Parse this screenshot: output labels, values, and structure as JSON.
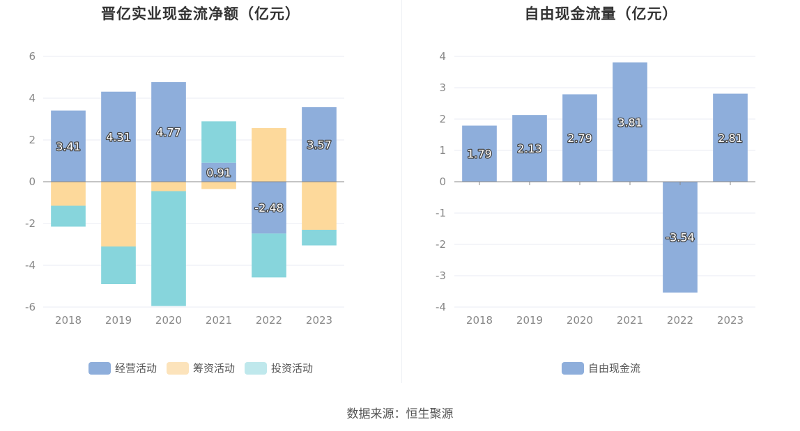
{
  "chart_data": [
    {
      "type": "bar",
      "stacked": true,
      "title": "晋亿实业现金流净额（亿元）",
      "categories": [
        "2018",
        "2019",
        "2020",
        "2021",
        "2022",
        "2023"
      ],
      "ylim": [
        -6,
        6
      ],
      "yticks": [
        -6,
        -4,
        -2,
        0,
        2,
        4,
        6
      ],
      "series": [
        {
          "name": "经营活动",
          "color": "#8eaedb",
          "values": [
            3.41,
            4.31,
            4.77,
            0.91,
            -2.48,
            3.57
          ],
          "labels": [
            "3.41",
            "4.31",
            "4.77",
            "0.91",
            "-2.48",
            "3.57"
          ]
        },
        {
          "name": "筹资活动",
          "color": "#fdd99b",
          "values": [
            -1.15,
            -3.1,
            -0.45,
            -0.35,
            2.57,
            -2.3
          ],
          "labels": []
        },
        {
          "name": "投资活动",
          "color": "#87d5dc",
          "values": [
            -1.0,
            -1.8,
            -5.5,
            1.98,
            -2.1,
            -0.75
          ],
          "labels": []
        }
      ],
      "legend": [
        "经营活动",
        "筹资活动",
        "投资活动"
      ],
      "legend_colors": [
        "#8eaedb",
        "#fce3bb",
        "#bfe8ec"
      ],
      "legend_position": "bottom"
    },
    {
      "type": "bar",
      "title": "自由现金流量（亿元）",
      "categories": [
        "2018",
        "2019",
        "2020",
        "2021",
        "2022",
        "2023"
      ],
      "ylim": [
        -4,
        4
      ],
      "yticks": [
        -4,
        -3,
        -2,
        -1,
        0,
        1,
        2,
        3,
        4
      ],
      "series": [
        {
          "name": "自由现金流",
          "color": "#8eaedb",
          "values": [
            1.79,
            2.13,
            2.79,
            3.81,
            -3.54,
            2.81
          ],
          "labels": [
            "1.79",
            "2.13",
            "2.79",
            "3.81",
            "-3.54",
            "2.81"
          ]
        }
      ],
      "legend": [
        "自由现金流"
      ],
      "legend_colors": [
        "#8eaedb"
      ],
      "legend_position": "bottom"
    }
  ],
  "footer": {
    "source": "数据来源：恒生聚源"
  }
}
